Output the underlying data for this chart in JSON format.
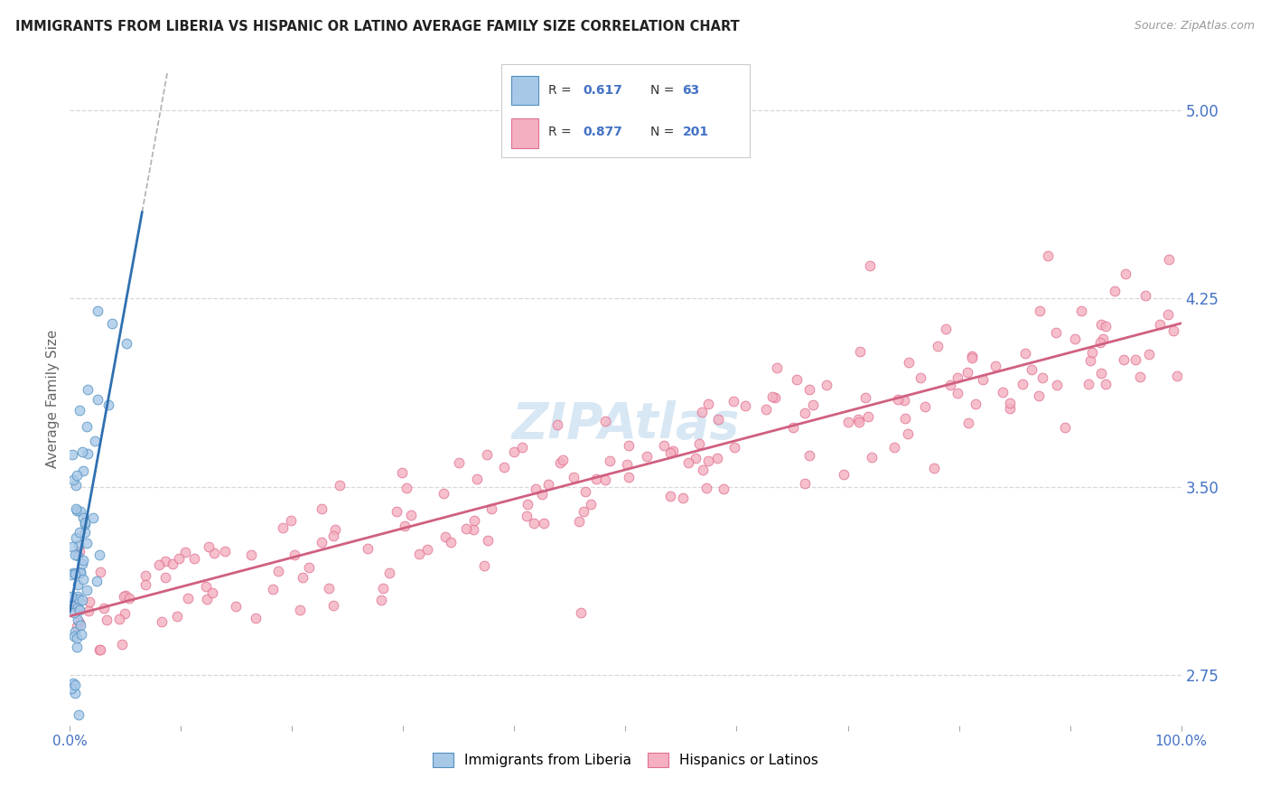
{
  "title": "IMMIGRANTS FROM LIBERIA VS HISPANIC OR LATINO AVERAGE FAMILY SIZE CORRELATION CHART",
  "source": "Source: ZipAtlas.com",
  "ylabel": "Average Family Size",
  "xlim": [
    0.0,
    1.0
  ],
  "ylim": [
    2.55,
    5.15
  ],
  "yticks_right": [
    2.75,
    3.5,
    4.25,
    5.0
  ],
  "xtick_positions": [
    0.0,
    0.1,
    0.2,
    0.3,
    0.4,
    0.5,
    0.6,
    0.7,
    0.8,
    0.9,
    1.0
  ],
  "xtick_labels": [
    "0.0%",
    "",
    "",
    "",
    "",
    "",
    "",
    "",
    "",
    "",
    "100.0%"
  ],
  "color_blue_fill": "#a8c8e8",
  "color_blue_edge": "#5090c0",
  "color_blue_line": "#3070b0",
  "color_pink_fill": "#f4b0c0",
  "color_pink_edge": "#e07090",
  "color_pink_line": "#d06080",
  "color_gray_dash": "#b0b0b0",
  "watermark_color": "#c8ddf0",
  "grid_color": "#d8d8d8",
  "background_color": "#ffffff",
  "title_color": "#222222",
  "source_color": "#999999",
  "axis_label_color": "#666666",
  "tick_color": "#4472c4",
  "legend_text_color": "#333333",
  "legend_value_color": "#4472c4"
}
